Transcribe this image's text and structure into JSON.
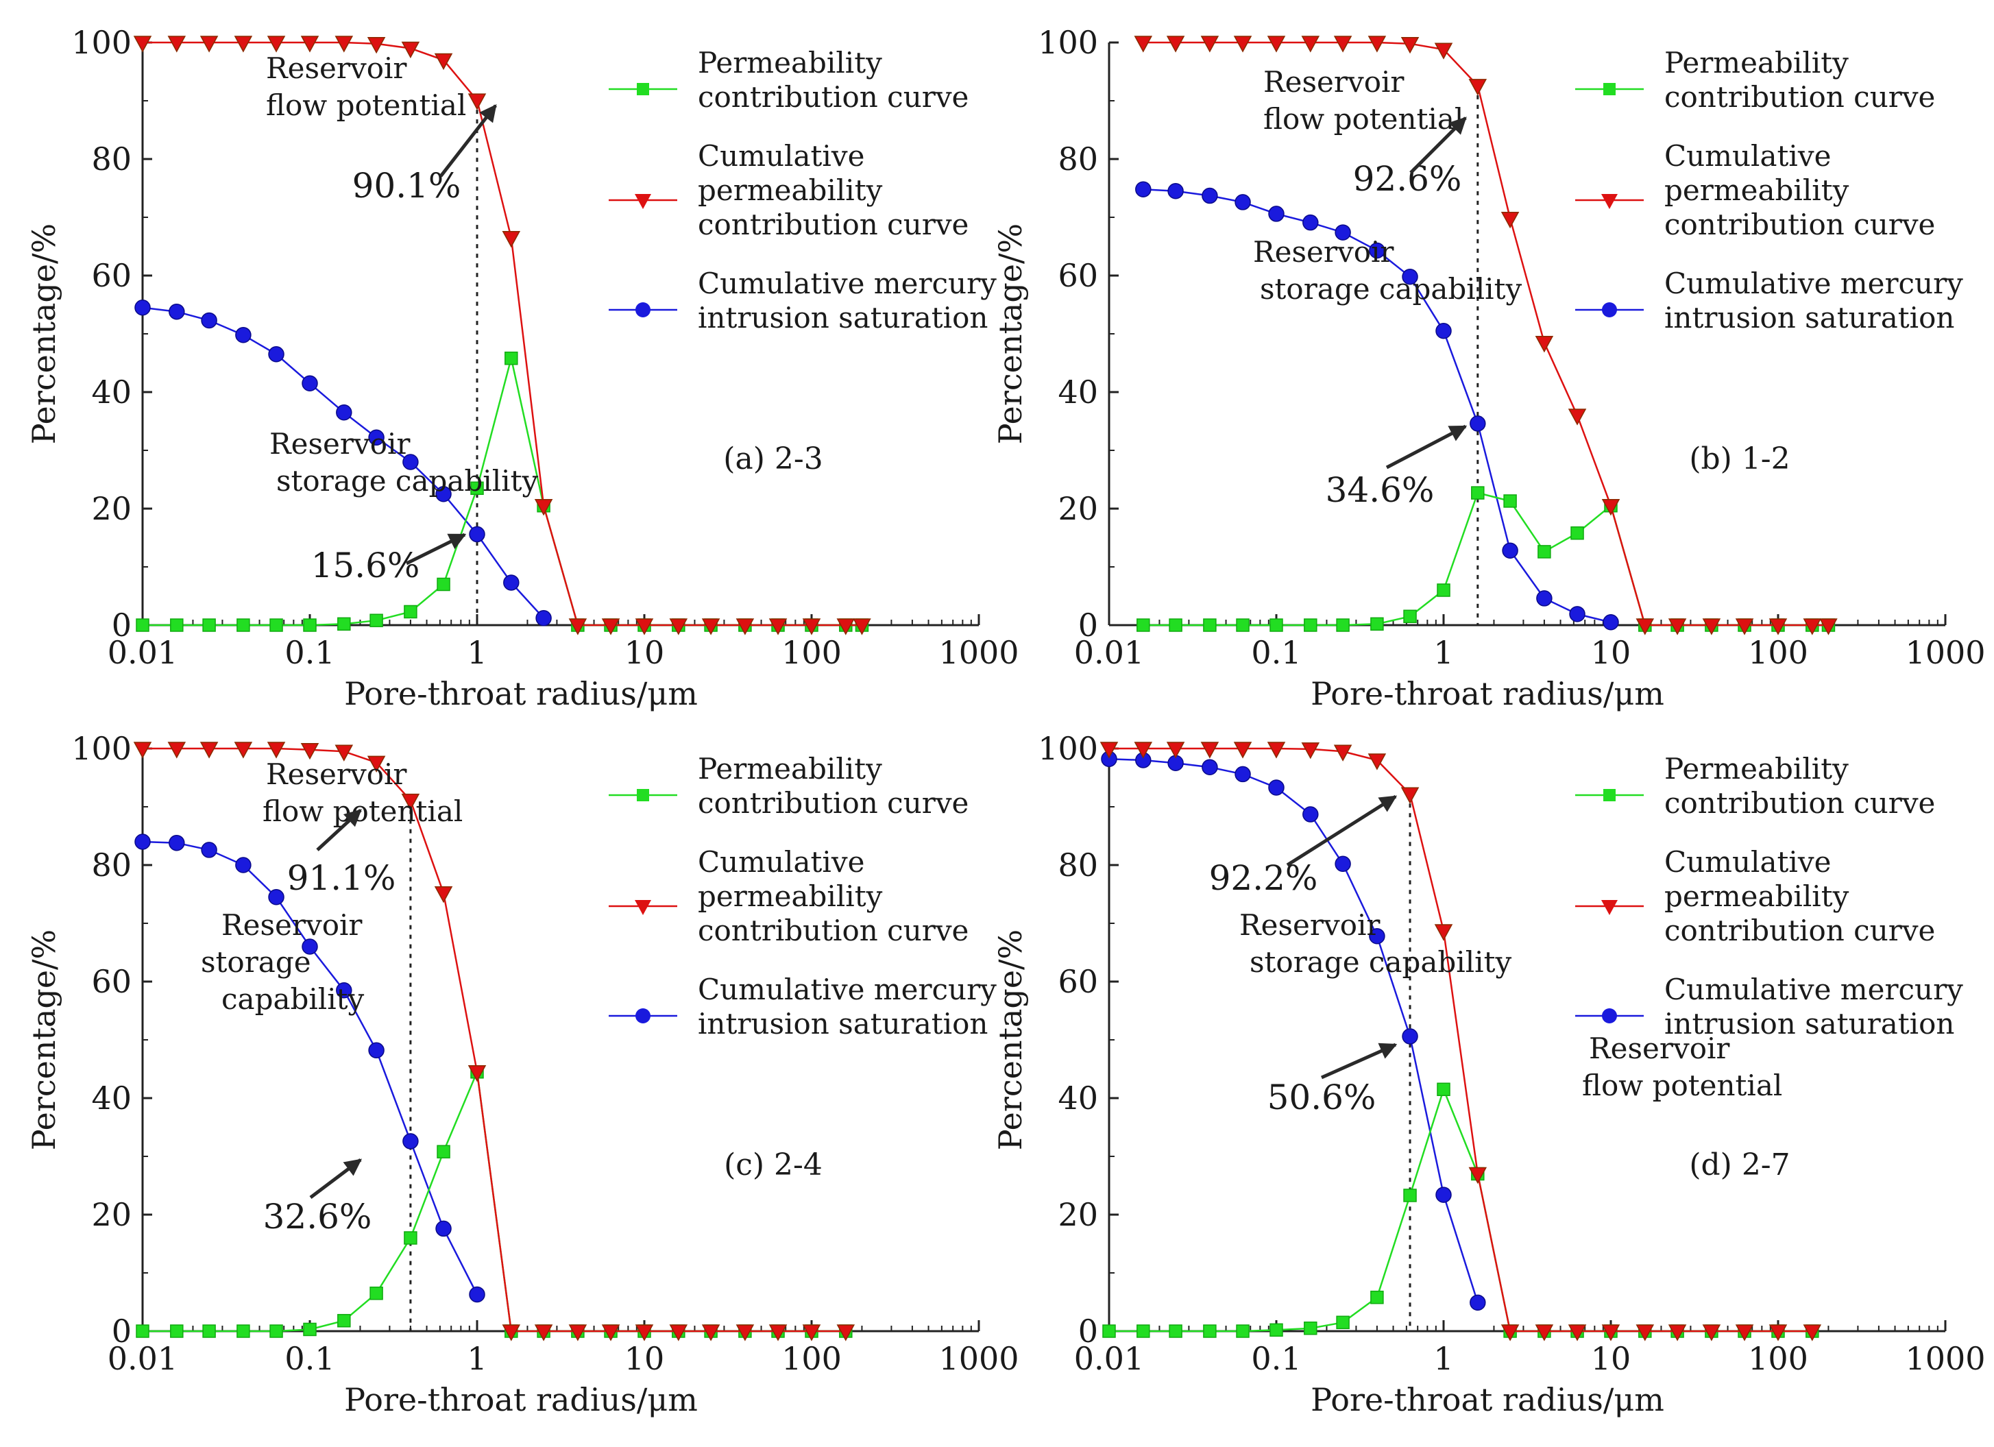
{
  "chart_data": [
    {
      "type": "line",
      "panel_label": "(a) 2-3",
      "xlabel": "Pore-throat radius/μm",
      "ylabel": "Percentage/%",
      "x_scale": "log",
      "xlim": [
        0.01,
        1000
      ],
      "ylim": [
        0,
        100
      ],
      "x_ticks": [
        "0.01",
        "0.1",
        "1",
        "10",
        "100",
        "1000"
      ],
      "y_ticks": [
        "0",
        "20",
        "40",
        "60",
        "80",
        "100"
      ],
      "legend": [
        "Permeability contribution curve",
        "Cumulative permeability contribution curve",
        "Cumulative mercury intrusion saturation"
      ],
      "series": [
        {
          "name": "Permeability contribution curve",
          "color": "#22dd22",
          "marker": "square",
          "x": [
            0.01,
            0.016,
            0.025,
            0.04,
            0.063,
            0.1,
            0.16,
            0.25,
            0.4,
            0.63,
            1.0,
            1.6,
            2.5,
            4.0,
            6.3,
            10,
            16,
            25,
            40,
            63,
            100,
            160,
            200
          ],
          "y": [
            0,
            0,
            0,
            0,
            0,
            0,
            0.2,
            0.8,
            2.3,
            7,
            23.5,
            45.8,
            20.5,
            0,
            0,
            0,
            0,
            0,
            0,
            0,
            0,
            0,
            0
          ]
        },
        {
          "name": "Cumulative permeability contribution curve",
          "color": "#dd1111",
          "marker": "triangle-down",
          "x": [
            0.01,
            0.016,
            0.025,
            0.04,
            0.063,
            0.1,
            0.16,
            0.25,
            0.4,
            0.63,
            1.0,
            1.6,
            2.5,
            4.0,
            6.3,
            10,
            16,
            25,
            40,
            63,
            100,
            160,
            200
          ],
          "y": [
            100,
            100,
            100,
            100,
            100,
            100,
            100,
            99.8,
            99,
            97,
            90.1,
            66.5,
            20.5,
            0,
            0,
            0,
            0,
            0,
            0,
            0,
            0,
            0,
            0
          ]
        },
        {
          "name": "Cumulative mercury intrusion saturation",
          "color": "#1a1add",
          "marker": "circle",
          "x": [
            0.01,
            0.016,
            0.025,
            0.04,
            0.063,
            0.1,
            0.16,
            0.25,
            0.4,
            0.63,
            1.0,
            1.6,
            2.5
          ],
          "y": [
            54.5,
            53.8,
            52.3,
            49.8,
            46.5,
            41.5,
            36.5,
            32.2,
            28,
            22.5,
            15.6,
            7.3,
            1.2
          ]
        }
      ],
      "annotations": {
        "flow": [
          "Reservoir",
          "flow potential"
        ],
        "storage": [
          "Reservoir",
          "storage capability"
        ],
        "flow_value": "90.1%",
        "storage_value": "15.6%",
        "marker_x": 1.0
      }
    },
    {
      "type": "line",
      "panel_label": "(b) 1-2",
      "xlabel": "Pore-throat radius/μm",
      "ylabel": "Percentage/%",
      "x_scale": "log",
      "xlim": [
        0.01,
        1000
      ],
      "ylim": [
        0,
        100
      ],
      "x_ticks": [
        "0.01",
        "0.1",
        "1",
        "10",
        "100",
        "1000"
      ],
      "y_ticks": [
        "0",
        "20",
        "40",
        "60",
        "80",
        "100"
      ],
      "legend": [
        "Permeability contribution curve",
        "Cumulative permeability contribution curve",
        "Cumulative mercury intrusion saturation"
      ],
      "series": [
        {
          "name": "Permeability contribution curve",
          "color": "#22dd22",
          "marker": "square",
          "x": [
            0.016,
            0.025,
            0.04,
            0.063,
            0.1,
            0.16,
            0.25,
            0.4,
            0.63,
            1.0,
            1.6,
            2.5,
            4.0,
            6.3,
            10,
            16,
            25,
            40,
            63,
            100,
            160,
            200
          ],
          "y": [
            0,
            0,
            0,
            0,
            0,
            0,
            0,
            0.2,
            1.5,
            6,
            22.7,
            21.3,
            12.6,
            15.8,
            20.5,
            0,
            0,
            0,
            0,
            0,
            0,
            0
          ]
        },
        {
          "name": "Cumulative permeability contribution curve",
          "color": "#dd1111",
          "marker": "triangle-down",
          "x": [
            0.016,
            0.025,
            0.04,
            0.063,
            0.1,
            0.16,
            0.25,
            0.4,
            0.63,
            1.0,
            1.6,
            2.5,
            4.0,
            6.3,
            10,
            16,
            25,
            40,
            63,
            100,
            160,
            200
          ],
          "y": [
            100,
            100,
            100,
            100,
            100,
            100,
            100,
            100,
            99.8,
            98.8,
            92.6,
            69.8,
            48.5,
            36,
            20.5,
            0,
            0,
            0,
            0,
            0,
            0,
            0
          ]
        },
        {
          "name": "Cumulative mercury intrusion saturation",
          "color": "#1a1add",
          "marker": "circle",
          "x": [
            0.016,
            0.025,
            0.04,
            0.063,
            0.1,
            0.16,
            0.25,
            0.4,
            0.63,
            1.0,
            1.6,
            2.5,
            4.0,
            6.3,
            10
          ],
          "y": [
            74.8,
            74.5,
            73.7,
            72.6,
            70.6,
            69.1,
            67.4,
            64.3,
            59.8,
            50.5,
            34.6,
            12.8,
            4.6,
            1.9,
            0.5
          ]
        }
      ],
      "annotations": {
        "flow": [
          "Reservoir",
          "flow potential"
        ],
        "storage": [
          "Reservoir",
          "storage capability"
        ],
        "flow_value": "92.6%",
        "storage_value": "34.6%",
        "marker_x": 1.6
      }
    },
    {
      "type": "line",
      "panel_label": "(c) 2-4",
      "xlabel": "Pore-throat radius/μm",
      "ylabel": "Percentage/%",
      "x_scale": "log",
      "xlim": [
        0.01,
        1000
      ],
      "ylim": [
        0,
        100
      ],
      "x_ticks": [
        "0.01",
        "0.1",
        "1",
        "10",
        "100",
        "1000"
      ],
      "y_ticks": [
        "0",
        "20",
        "40",
        "60",
        "80",
        "100"
      ],
      "legend": [
        "Permeability contribution curve",
        "Cumulative permeability contribution curve",
        "Cumulative mercury intrusion saturation"
      ],
      "series": [
        {
          "name": "Permeability contribution curve",
          "color": "#22dd22",
          "marker": "square",
          "x": [
            0.01,
            0.016,
            0.025,
            0.04,
            0.063,
            0.1,
            0.16,
            0.25,
            0.4,
            0.63,
            1.0,
            1.6,
            2.5,
            4.0,
            6.3,
            10,
            16,
            25,
            40,
            63,
            100,
            160
          ],
          "y": [
            0,
            0,
            0,
            0,
            0,
            0.3,
            1.8,
            6.5,
            16,
            30.8,
            44.5,
            0,
            0,
            0,
            0,
            0,
            0,
            0,
            0,
            0,
            0,
            0
          ]
        },
        {
          "name": "Cumulative permeability contribution curve",
          "color": "#dd1111",
          "marker": "triangle-down",
          "x": [
            0.01,
            0.016,
            0.025,
            0.04,
            0.063,
            0.1,
            0.16,
            0.25,
            0.4,
            0.63,
            1.0,
            1.6,
            2.5,
            4.0,
            6.3,
            10,
            16,
            25,
            40,
            63,
            100,
            160
          ],
          "y": [
            100,
            100,
            100,
            100,
            100,
            99.8,
            99.5,
            97.6,
            91.1,
            75.2,
            44.5,
            0,
            0,
            0,
            0,
            0,
            0,
            0,
            0,
            0,
            0,
            0
          ]
        },
        {
          "name": "Cumulative mercury intrusion saturation",
          "color": "#1a1add",
          "marker": "circle",
          "x": [
            0.01,
            0.016,
            0.025,
            0.04,
            0.063,
            0.1,
            0.16,
            0.25,
            0.4,
            0.63,
            1.0
          ],
          "y": [
            84,
            83.8,
            82.6,
            80,
            74.5,
            66,
            58.5,
            48.2,
            32.6,
            17.6,
            6.3
          ]
        }
      ],
      "annotations": {
        "flow": [
          "Reservoir",
          "flow potential"
        ],
        "storage": [
          "Reservoir",
          "storage",
          "capability"
        ],
        "flow_value": "91.1%",
        "storage_value": "32.6%",
        "marker_x": 0.4
      }
    },
    {
      "type": "line",
      "panel_label": "(d) 2-7",
      "xlabel": "Pore-throat radius/μm",
      "ylabel": "Percentage/%",
      "x_scale": "log",
      "xlim": [
        0.01,
        1000
      ],
      "ylim": [
        0,
        100
      ],
      "x_ticks": [
        "0.01",
        "0.1",
        "1",
        "10",
        "100",
        "1000"
      ],
      "y_ticks": [
        "0",
        "20",
        "40",
        "60",
        "80",
        "100"
      ],
      "legend": [
        "Permeability contribution curve",
        "Cumulative permeability contribution curve",
        "Cumulative mercury intrusion saturation"
      ],
      "series": [
        {
          "name": "Permeability contribution curve",
          "color": "#22dd22",
          "marker": "square",
          "x": [
            0.01,
            0.016,
            0.025,
            0.04,
            0.063,
            0.1,
            0.16,
            0.25,
            0.4,
            0.63,
            1.0,
            1.6,
            2.5,
            4.0,
            6.3,
            10,
            16,
            25,
            40,
            63,
            100,
            160
          ],
          "y": [
            0,
            0,
            0,
            0,
            0,
            0.2,
            0.5,
            1.5,
            5.8,
            23.3,
            41.5,
            27,
            0,
            0,
            0,
            0,
            0,
            0,
            0,
            0,
            0,
            0
          ]
        },
        {
          "name": "Cumulative permeability contribution curve",
          "color": "#dd1111",
          "marker": "triangle-down",
          "x": [
            0.01,
            0.016,
            0.025,
            0.04,
            0.063,
            0.1,
            0.16,
            0.25,
            0.4,
            0.63,
            1.0,
            1.6,
            2.5,
            4.0,
            6.3,
            10,
            16,
            25,
            40,
            63,
            100,
            160
          ],
          "y": [
            100,
            100,
            100,
            100,
            100,
            100,
            99.9,
            99.5,
            98,
            92.2,
            68.7,
            27,
            0,
            0,
            0,
            0,
            0,
            0,
            0,
            0,
            0,
            0
          ]
        },
        {
          "name": "Cumulative mercury intrusion saturation",
          "color": "#1a1add",
          "marker": "circle",
          "x": [
            0.01,
            0.016,
            0.025,
            0.04,
            0.063,
            0.1,
            0.16,
            0.25,
            0.4,
            0.63,
            1.0,
            1.6
          ],
          "y": [
            98.2,
            98,
            97.5,
            96.8,
            95.6,
            93.3,
            88.7,
            80.2,
            67.8,
            50.6,
            23.4,
            4.9
          ]
        }
      ],
      "annotations": {
        "flow": [
          "Reservoir",
          "flow potential"
        ],
        "storage": [
          "Reservoir",
          "storage capability"
        ],
        "flow_value": "92.2%",
        "storage_value": "50.6%",
        "marker_x": 0.63
      }
    }
  ]
}
